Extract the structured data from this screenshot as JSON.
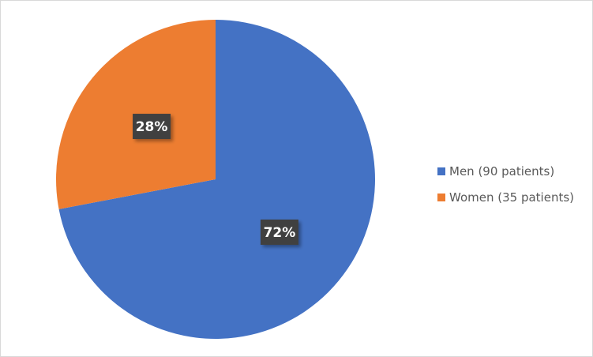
{
  "chart_data": {
    "type": "pie",
    "start_angle": "top, clockwise",
    "slices": [
      {
        "name": "Men (90 patients)",
        "value": 90,
        "label": "72%",
        "color": "#4472C4"
      },
      {
        "name": "Women (35 patients)",
        "value": 35,
        "label": "28%",
        "color": "#ED7D31"
      }
    ],
    "legend_position": "right",
    "data_label_style": {
      "background": "#404040",
      "text_color": "#FFFFFF"
    }
  }
}
